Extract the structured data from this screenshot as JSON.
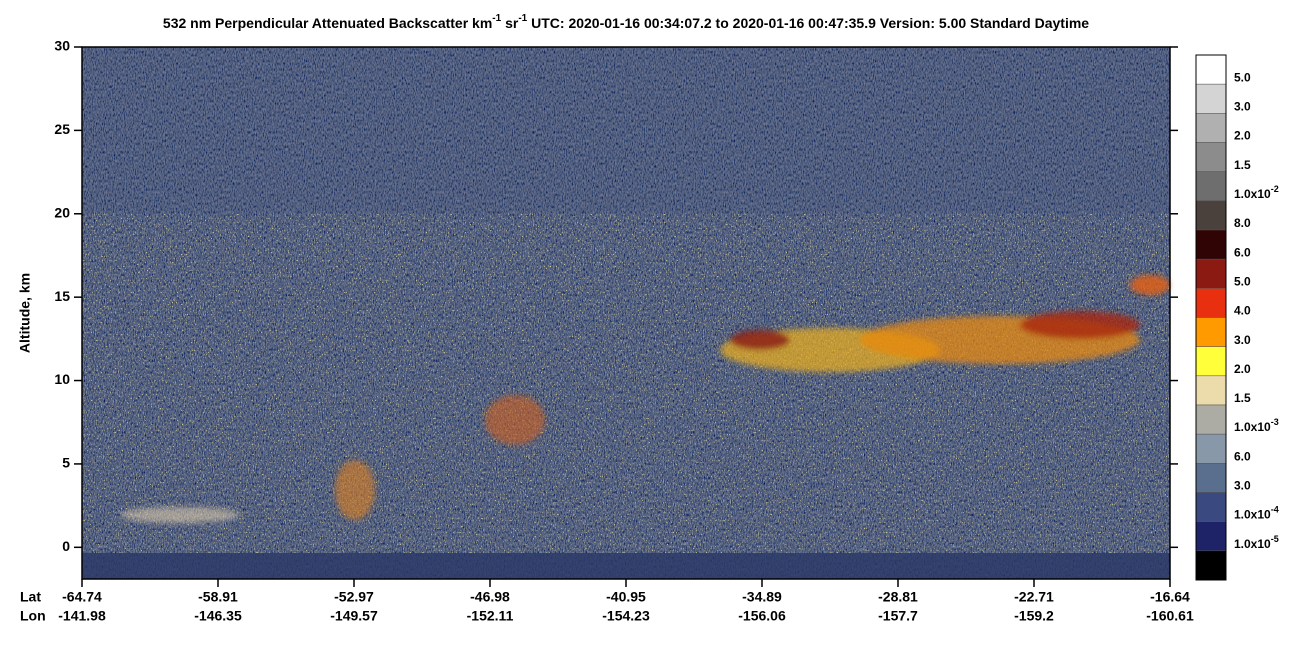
{
  "chart_data": {
    "type": "heatmap",
    "title": [
      "532 nm Perpendicular Attenuated Backscatter km",
      "-1",
      " sr",
      "-1",
      "  UTC: 2020-01-16 00:34:07.2 to 2020-01-16 00:47:35.9  Version: 5.00 Standard Daytime"
    ],
    "ylabel": "Altitude, km",
    "ylim": [
      -1.9,
      30
    ],
    "yticks": [
      0,
      5,
      10,
      15,
      20,
      25,
      30
    ],
    "x_tick_rows": [
      {
        "name": "Lat",
        "labels": [
          -64.74,
          -58.91,
          -52.97,
          -46.98,
          -40.95,
          -34.89,
          -28.81,
          -22.71,
          -16.64
        ]
      },
      {
        "name": "Lon",
        "labels": [
          -141.98,
          -146.35,
          -149.57,
          -152.11,
          -154.23,
          -156.06,
          -157.7,
          -159.2,
          -160.61
        ]
      }
    ],
    "colorbar": {
      "colors": [
        "#ffffff",
        "#d4d4d4",
        "#b0b0b0",
        "#8c8c8c",
        "#6e6e6e",
        "#4a403c",
        "#300404",
        "#8a1a12",
        "#e83010",
        "#ff9a00",
        "#ffff3a",
        "#ecdcac",
        "#acaca4",
        "#8898a8",
        "#5a6e8e",
        "#3a4a80",
        "#1e2266",
        "#000000"
      ],
      "labels": [
        "5.0",
        "3.0",
        "2.0",
        "1.5",
        [
          "1.0x10",
          "-2"
        ],
        "8.0",
        "6.0",
        "5.0",
        "4.0",
        "3.0",
        "2.0",
        "1.5",
        [
          "1.0x10",
          "-3"
        ],
        "6.0",
        "3.0",
        [
          "1.0x10",
          "-4"
        ],
        [
          "1.0x10",
          "-5"
        ]
      ]
    }
  }
}
